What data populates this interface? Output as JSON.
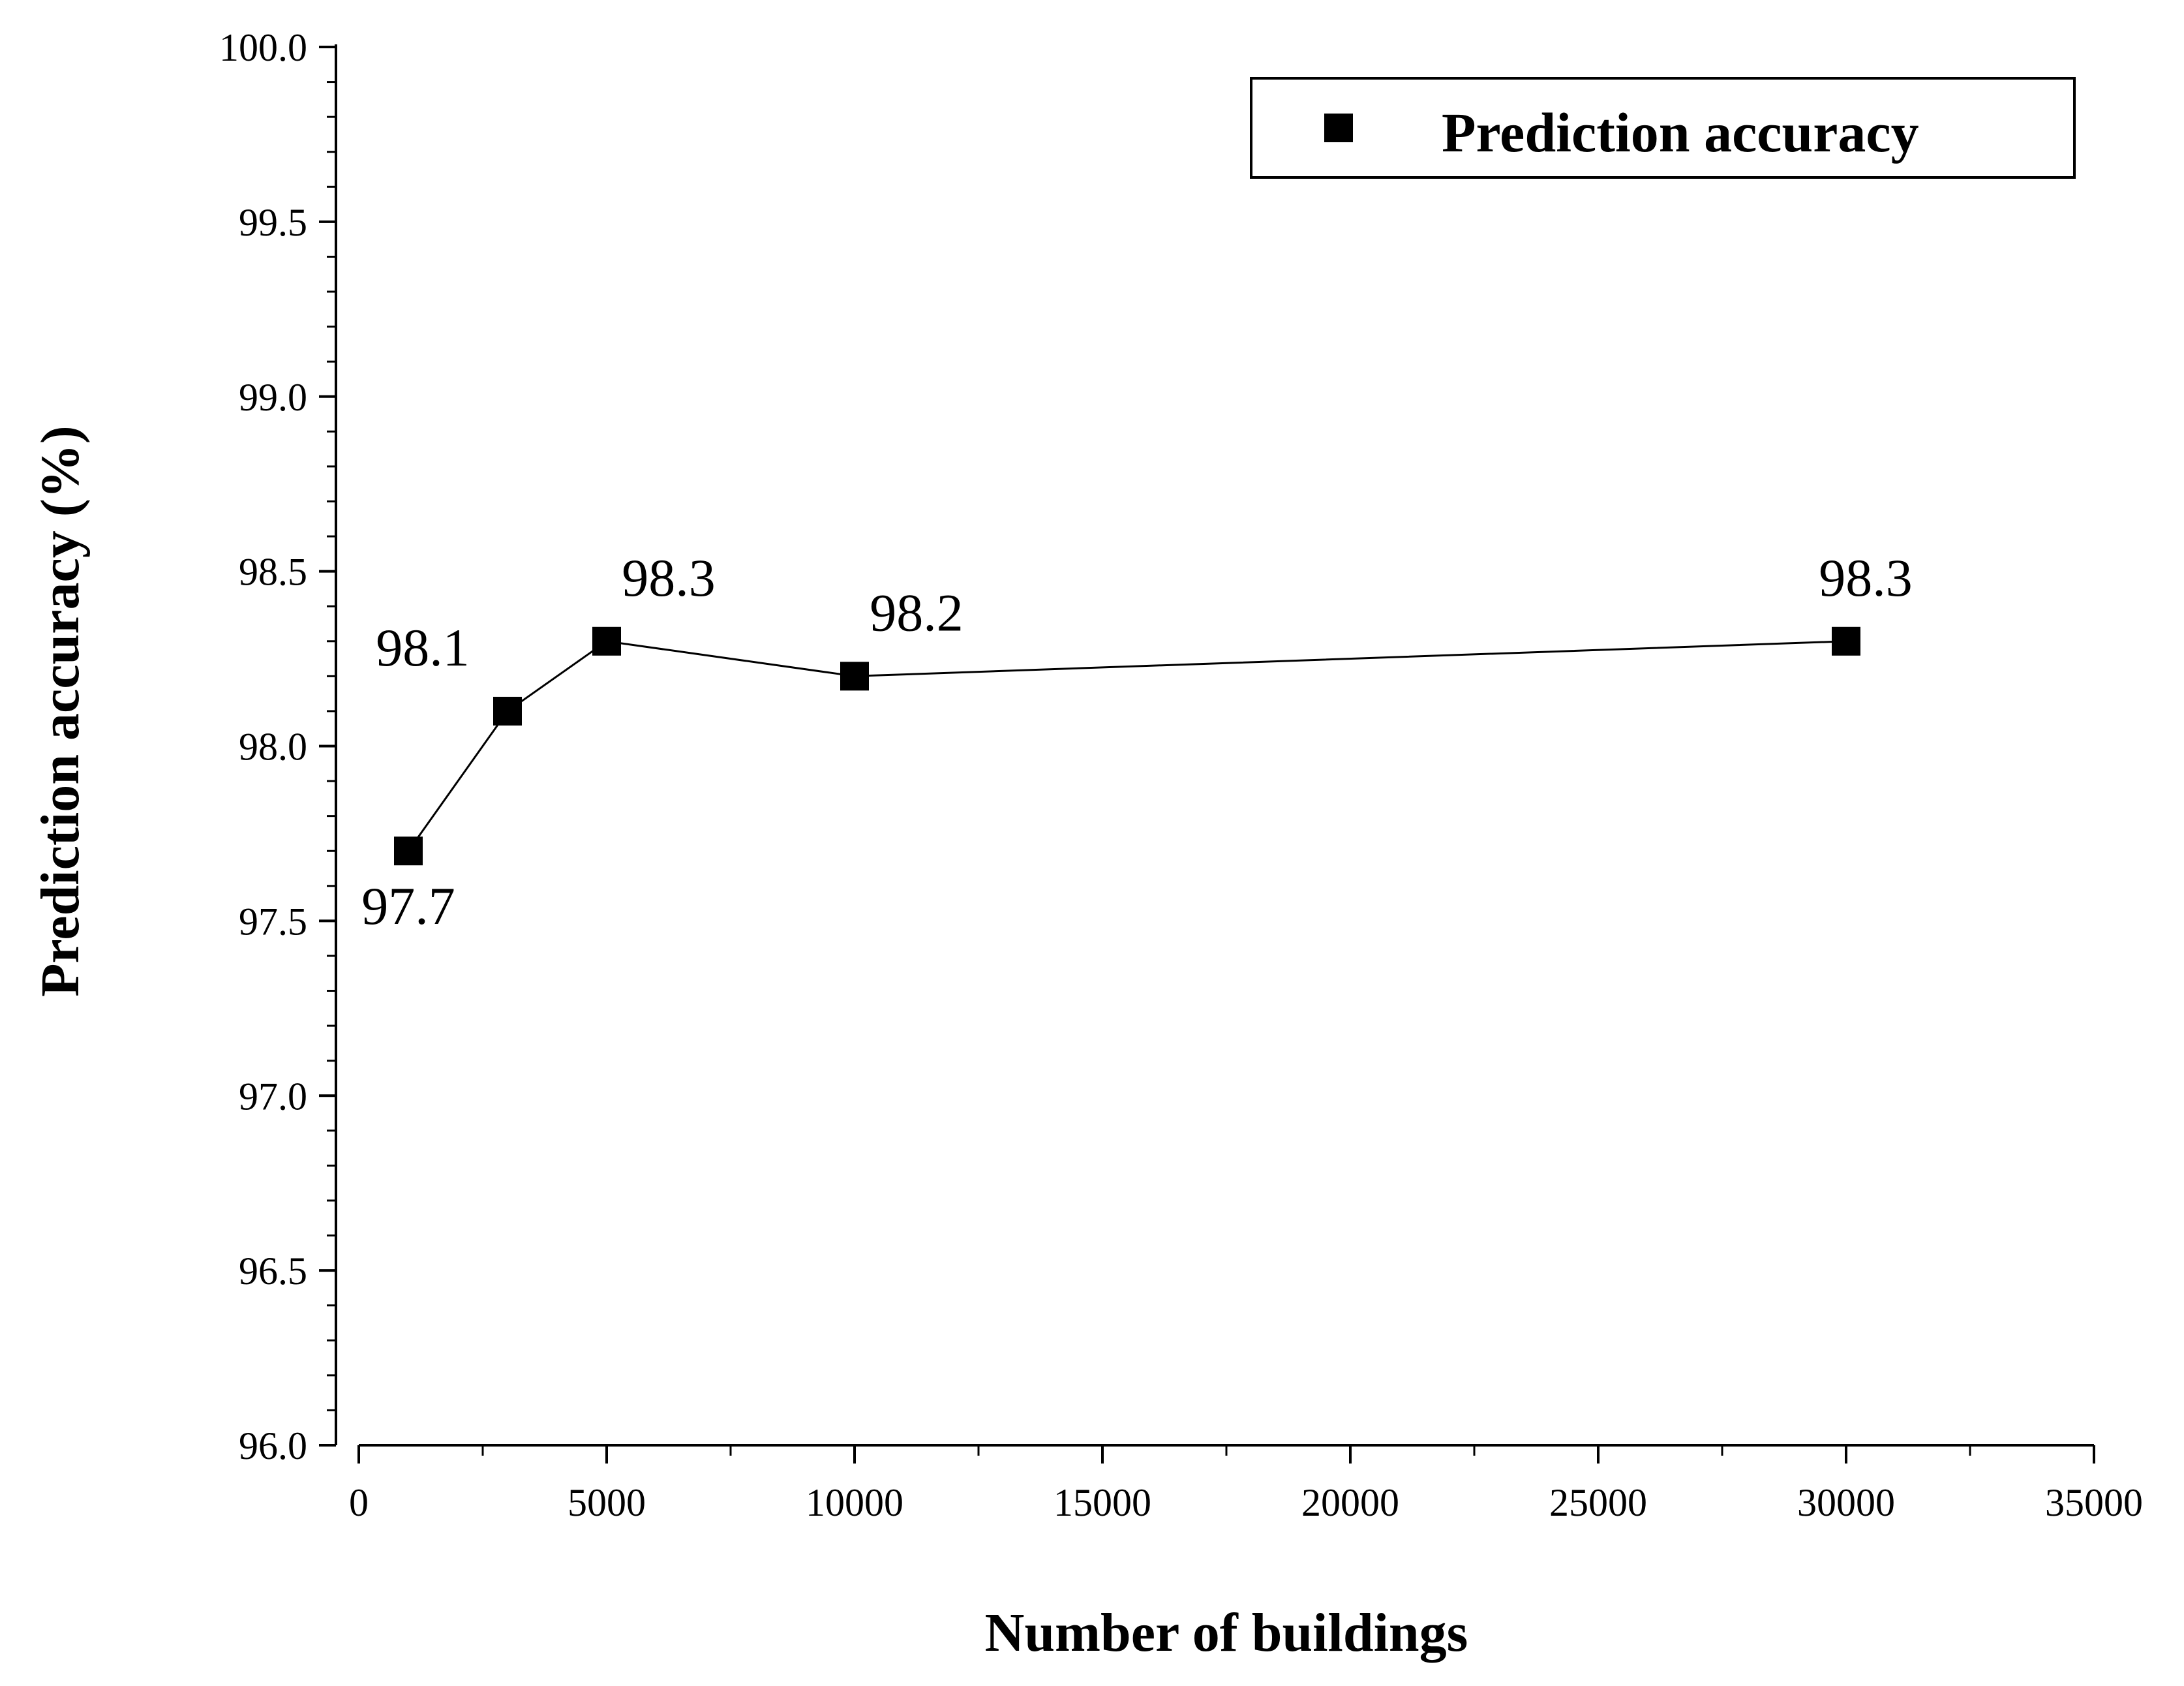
{
  "chart_data": {
    "type": "line",
    "xlabel": "Number of buildings",
    "ylabel": "Prediction accuracy (%)",
    "xlim": [
      0,
      35000
    ],
    "ylim": [
      96.0,
      100.0
    ],
    "x_ticks": [
      "0",
      "5000",
      "10000",
      "15000",
      "20000",
      "25000",
      "30000",
      "35000"
    ],
    "y_ticks": [
      "96.0",
      "96.5",
      "97.0",
      "97.5",
      "98.0",
      "98.5",
      "99.0",
      "99.5",
      "100.0"
    ],
    "grid": false,
    "legend_position": "top-right",
    "series": [
      {
        "name": "Prediction accuracy",
        "marker": "square",
        "line_color": "#000000",
        "marker_color": "#000000",
        "x": [
          1000,
          3000,
          5000,
          10000,
          30000
        ],
        "y": [
          97.7,
          98.1,
          98.3,
          98.2,
          98.3
        ],
        "labels": [
          "97.7",
          "98.1",
          "98.3",
          "98.2",
          "98.3"
        ]
      }
    ]
  }
}
